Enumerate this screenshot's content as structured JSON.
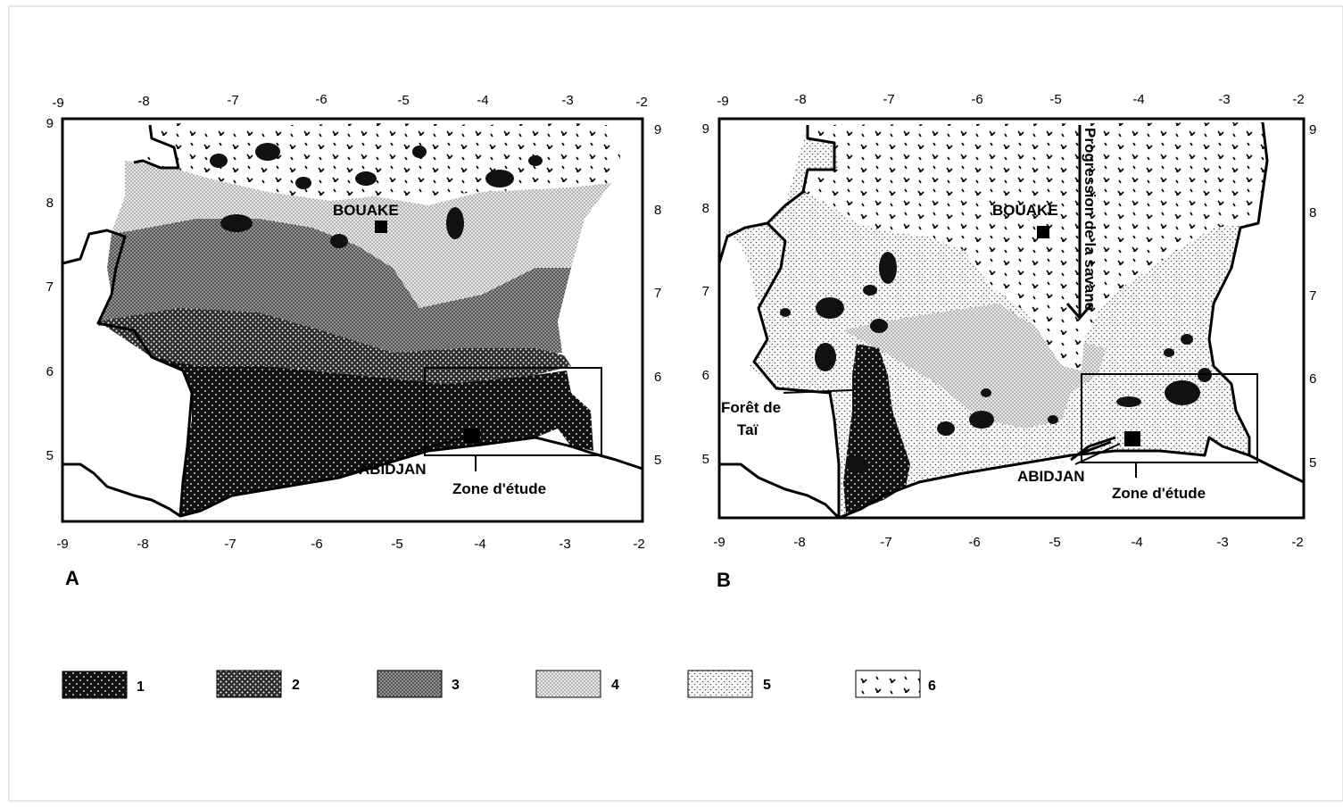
{
  "panels": [
    {
      "letter": "A",
      "x_ticks": [
        "-9",
        "-8",
        "-7",
        "-6",
        "-5",
        "-4",
        "-3",
        "-2"
      ],
      "y_ticks": [
        "9",
        "8",
        "7",
        "6",
        "5"
      ],
      "labels": {
        "city_north": "BOUAKE",
        "city_south": "ABIDJAN",
        "study_zone": "Zone d'étude"
      }
    },
    {
      "letter": "B",
      "x_ticks": [
        "-9",
        "-8",
        "-7",
        "-6",
        "-5",
        "-4",
        "-3",
        "-2"
      ],
      "y_ticks": [
        "9",
        "8",
        "7",
        "6",
        "5"
      ],
      "labels": {
        "city_north": "BOUAKE",
        "city_south": "ABIDJAN",
        "study_zone": "Zone d'étude",
        "forest_line1": "Forêt de",
        "forest_line2": "Taï",
        "savanna_arrow": "Progression de la savane"
      }
    }
  ],
  "legend": [
    {
      "label": "1",
      "fill": "pat1"
    },
    {
      "label": "2",
      "fill": "pat2"
    },
    {
      "label": "3",
      "fill": "pat3"
    },
    {
      "label": "4",
      "fill": "pat4"
    },
    {
      "label": "5",
      "fill": "pat5"
    },
    {
      "label": "6",
      "fill": "pat6"
    }
  ],
  "colors": {
    "ink": "#000000",
    "paper": "#ffffff",
    "border": "#cfcfcf"
  }
}
